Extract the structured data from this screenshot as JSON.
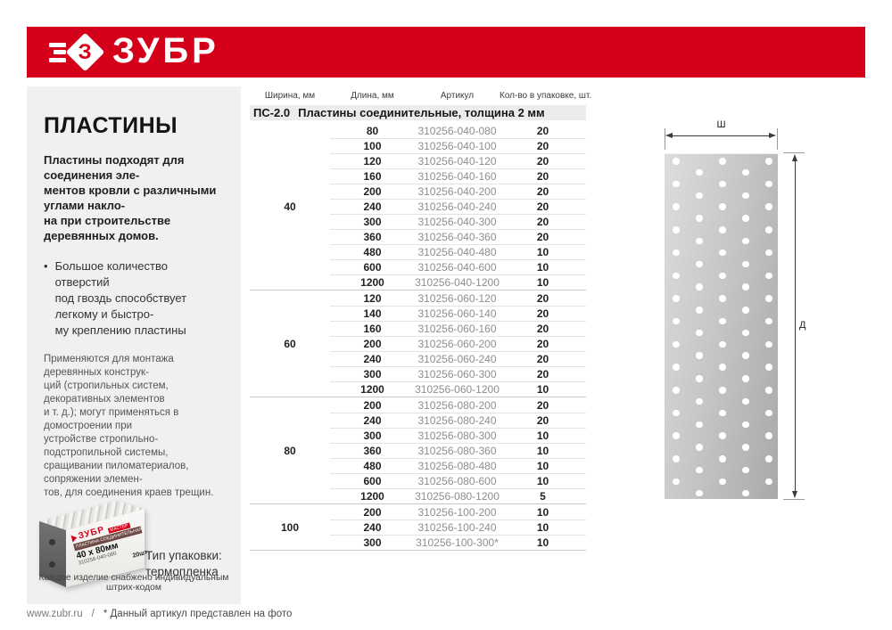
{
  "colors": {
    "accent": "#d40019",
    "panel_bg": "#f0f0f0",
    "section_bg": "#ececec",
    "article_text": "#8e8e8e"
  },
  "header": {
    "brand": "ЗУБР",
    "logo_letter": "З"
  },
  "panel": {
    "title": "ПЛАСТИНЫ",
    "intro": "Пластины подходят для соединения эле-\nментов кровли с различными углами накло-\nна при строительстве деревянных домов.",
    "bullet_marker": "•",
    "bullet": "Большое количество отверстий\nпод гвоздь способствует легкому и быстро-\nму креплению пластины",
    "usage_note": "Применяются для монтажа деревянных конструк-\nций (стропильных систем, декоративных элементов\nи т. д.); могут применяться в домостроении при\nустройстве стропильно-подстропильной системы,\nсращивании пиломатериалов, сопряжении элемен-\nтов, для соединения краев трещин.",
    "package": {
      "type_label": "Тип упаковки:\nтермопленка",
      "label_brand": "ЗУБР",
      "label_series": "МАСТЕР",
      "label_product": "ПЛАСТИНА СОЕДИНИТЕЛЬНАЯ",
      "label_size": "40 х 80мм",
      "label_article": "310256-040-080",
      "label_qty": "20шт",
      "barcode_note": "Каждое изделие снабжено индивидуальным штрих-кодом"
    }
  },
  "table": {
    "columns": [
      "Ширина, мм",
      "Длина, мм",
      "Артикул",
      "Кол-во в упаковке, шт."
    ],
    "section_code": "ПС-2.0",
    "section_name": "Пластины соединительные, толщина 2 мм",
    "groups": [
      {
        "width": "40",
        "rows": [
          {
            "length": "80",
            "article": "310256-040-080",
            "qty": "20"
          },
          {
            "length": "100",
            "article": "310256-040-100",
            "qty": "20"
          },
          {
            "length": "120",
            "article": "310256-040-120",
            "qty": "20"
          },
          {
            "length": "160",
            "article": "310256-040-160",
            "qty": "20"
          },
          {
            "length": "200",
            "article": "310256-040-200",
            "qty": "20"
          },
          {
            "length": "240",
            "article": "310256-040-240",
            "qty": "20"
          },
          {
            "length": "300",
            "article": "310256-040-300",
            "qty": "20"
          },
          {
            "length": "360",
            "article": "310256-040-360",
            "qty": "20"
          },
          {
            "length": "480",
            "article": "310256-040-480",
            "qty": "10"
          },
          {
            "length": "600",
            "article": "310256-040-600",
            "qty": "10"
          },
          {
            "length": "1200",
            "article": "310256-040-1200",
            "qty": "10"
          }
        ]
      },
      {
        "width": "60",
        "rows": [
          {
            "length": "120",
            "article": "310256-060-120",
            "qty": "20"
          },
          {
            "length": "140",
            "article": "310256-060-140",
            "qty": "20"
          },
          {
            "length": "160",
            "article": "310256-060-160",
            "qty": "20"
          },
          {
            "length": "200",
            "article": "310256-060-200",
            "qty": "20"
          },
          {
            "length": "240",
            "article": "310256-060-240",
            "qty": "20"
          },
          {
            "length": "300",
            "article": "310256-060-300",
            "qty": "20"
          },
          {
            "length": "1200",
            "article": "310256-060-1200",
            "qty": "10"
          }
        ]
      },
      {
        "width": "80",
        "rows": [
          {
            "length": "200",
            "article": "310256-080-200",
            "qty": "20"
          },
          {
            "length": "240",
            "article": "310256-080-240",
            "qty": "20"
          },
          {
            "length": "300",
            "article": "310256-080-300",
            "qty": "10"
          },
          {
            "length": "360",
            "article": "310256-080-360",
            "qty": "10"
          },
          {
            "length": "480",
            "article": "310256-080-480",
            "qty": "10"
          },
          {
            "length": "600",
            "article": "310256-080-600",
            "qty": "10"
          },
          {
            "length": "1200",
            "article": "310256-080-1200",
            "qty": "5"
          }
        ]
      },
      {
        "width": "100",
        "rows": [
          {
            "length": "200",
            "article": "310256-100-200",
            "qty": "10"
          },
          {
            "length": "240",
            "article": "310256-100-240",
            "qty": "10"
          },
          {
            "length": "300",
            "article": "310256-100-300*",
            "qty": "10"
          }
        ]
      }
    ]
  },
  "diagram": {
    "width_label": "Ш",
    "length_label": "Д"
  },
  "footer": {
    "site": "www.zubr.ru",
    "separator": "/",
    "note": "* Данный артикул представлен на фото"
  }
}
